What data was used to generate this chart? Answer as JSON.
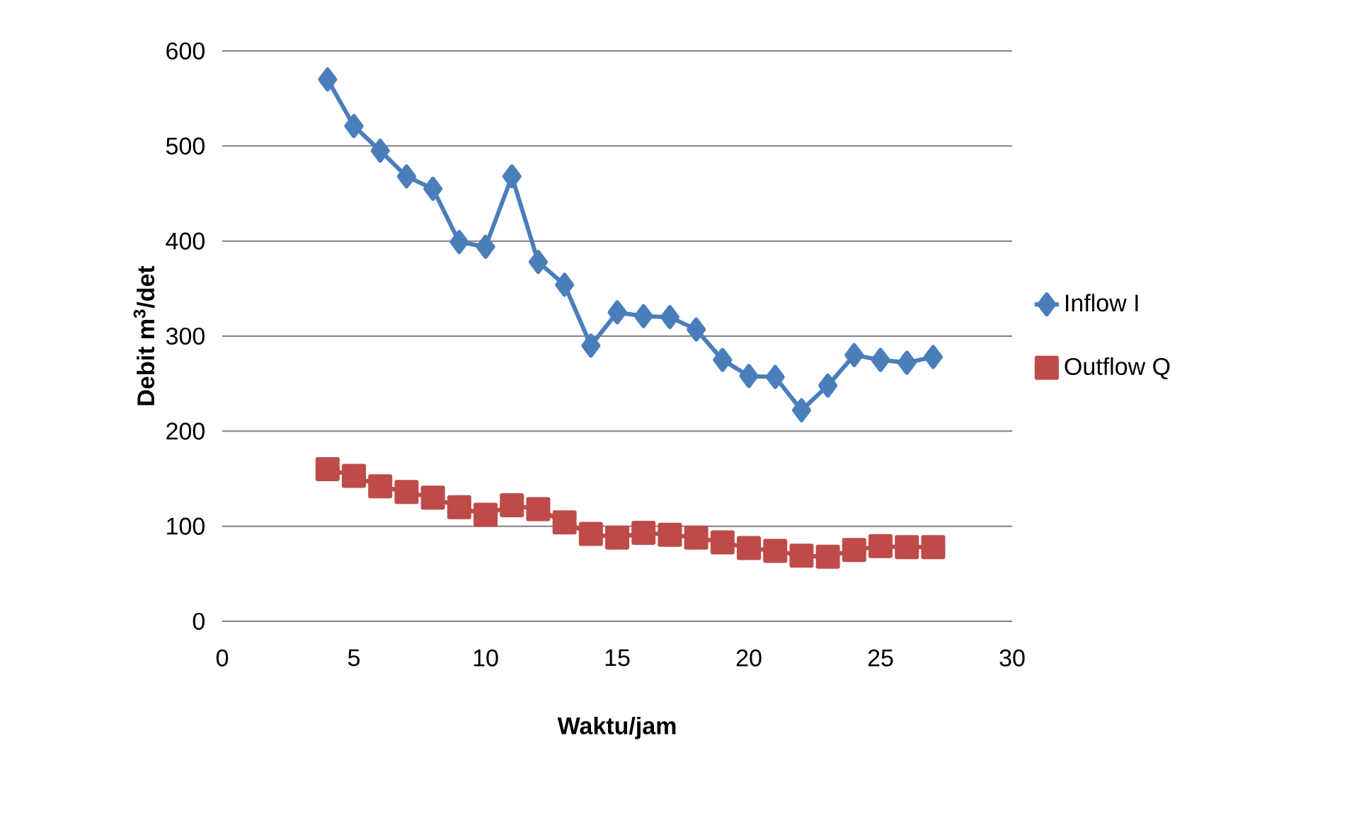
{
  "chart_data": {
    "type": "line",
    "xlabel": "Waktu/jam",
    "ylabel": "Debit m$^{3}$/det",
    "x": [
      4,
      5,
      6,
      7,
      8,
      9,
      10,
      11,
      12,
      13,
      14,
      15,
      16,
      17,
      18,
      19,
      20,
      21,
      22,
      23,
      24,
      25,
      26,
      27
    ],
    "series": [
      {
        "name": "Inflow I",
        "color": "#4a7ebb",
        "marker": "diamond",
        "values": [
          570,
          521,
          495,
          468,
          455,
          399,
          394,
          468,
          378,
          354,
          290,
          325,
          321,
          320,
          307,
          275,
          258,
          257,
          222,
          248,
          280,
          275,
          272,
          278
        ]
      },
      {
        "name": "Outflow Q",
        "color": "#be4b48",
        "marker": "square",
        "values": [
          160,
          153,
          142,
          136,
          130,
          120,
          112,
          122,
          118,
          104,
          92,
          88,
          93,
          91,
          88,
          83,
          77,
          74,
          69,
          68,
          75,
          79,
          78,
          78
        ]
      }
    ],
    "xlim": [
      0,
      30
    ],
    "xticks": [
      0,
      5,
      10,
      15,
      20,
      25,
      30
    ],
    "ylim": [
      0,
      600
    ],
    "yticks": [
      0,
      100,
      200,
      300,
      400,
      500,
      600
    ],
    "grid": "y",
    "legend": "right"
  }
}
